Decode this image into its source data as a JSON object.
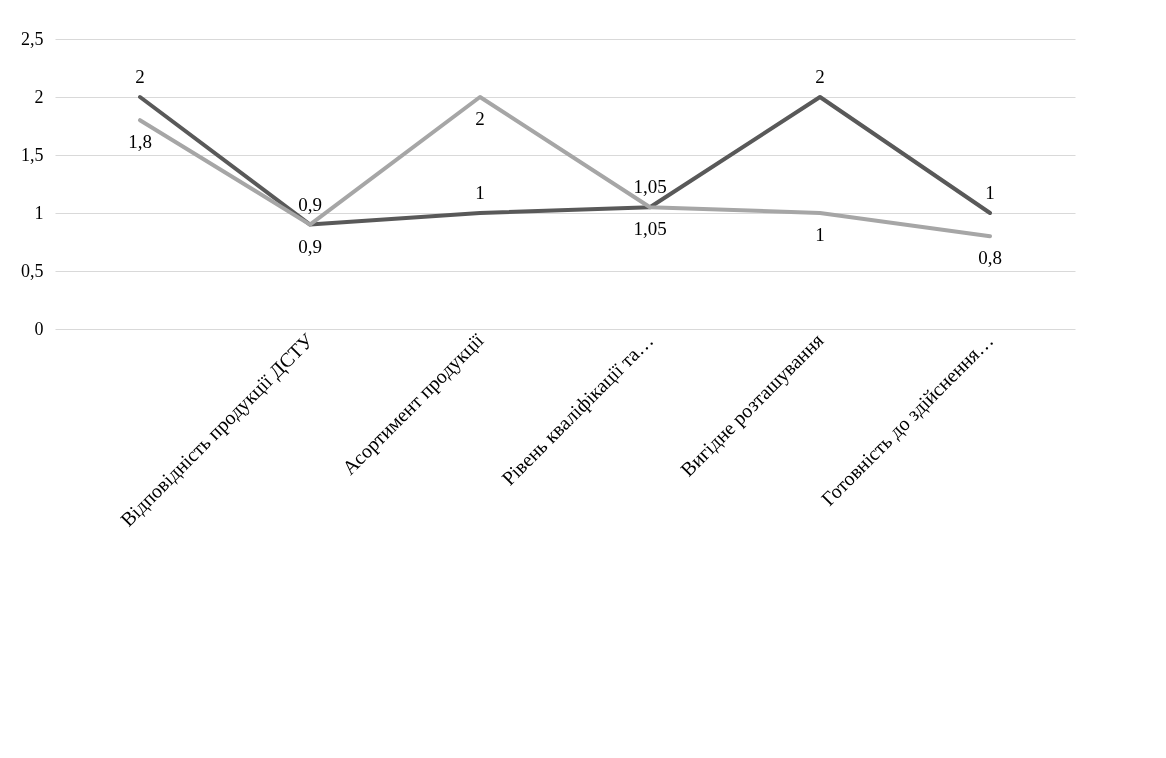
{
  "chart_data": {
    "type": "line",
    "categories": [
      null,
      "Відповідність продукції ДСТУ",
      "Асортимент продукції",
      "Рівень кваліфікації та…",
      "Вигідне розташування",
      "Готовність до здійснення…"
    ],
    "series": [
      {
        "color": "#595959",
        "values": [
          2,
          0.9,
          1,
          1.05,
          2,
          1
        ],
        "value_labels": [
          "2",
          "0,9",
          "1",
          "1,05",
          "2",
          "1"
        ]
      },
      {
        "color": "#a6a6a6",
        "values": [
          1.8,
          0.9,
          2,
          1.05,
          1,
          0.8
        ],
        "value_labels": [
          "1,8",
          "0,9",
          "2",
          "1,05",
          "1",
          "0,8"
        ]
      }
    ],
    "ylim": [
      0,
      2.5
    ],
    "yticks": [
      {
        "value": 0,
        "label": "0"
      },
      {
        "value": 0.5,
        "label": "0,5"
      },
      {
        "value": 1,
        "label": "1"
      },
      {
        "value": 1.5,
        "label": "1,5"
      },
      {
        "value": 2,
        "label": "2"
      },
      {
        "value": 2.5,
        "label": "2,5"
      }
    ],
    "grid": "y"
  }
}
